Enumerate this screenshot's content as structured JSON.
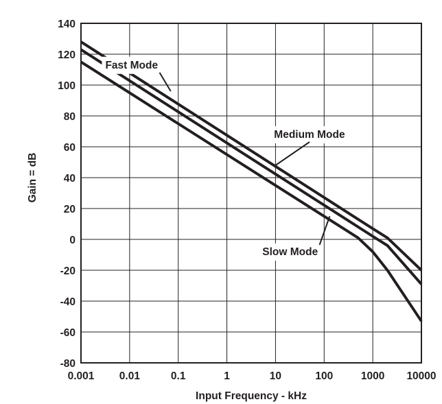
{
  "chart_data": {
    "type": "line",
    "xlabel": "Input Frequency - kHz",
    "ylabel": "Gain = dB",
    "x_scale": "log",
    "xlim": [
      0.001,
      10000
    ],
    "ylim": [
      -80,
      140
    ],
    "x_ticks": [
      0.001,
      0.01,
      0.1,
      1,
      10,
      100,
      1000,
      10000
    ],
    "x_tick_labels": [
      "0.001",
      "0.01",
      "0.1",
      "1",
      "10",
      "100",
      "1000",
      "10000"
    ],
    "y_ticks": [
      -80,
      -60,
      -40,
      -20,
      0,
      20,
      40,
      60,
      80,
      100,
      120,
      140
    ],
    "y_tick_labels": [
      "-80",
      "-60",
      "-40",
      "-20",
      "0",
      "20",
      "40",
      "60",
      "80",
      "100",
      "120",
      "140"
    ],
    "grid": true,
    "series": [
      {
        "name": "Fast Mode",
        "color": "#231f20",
        "x": [
          0.001,
          1000,
          2000,
          10000
        ],
        "y": [
          128,
          7,
          1,
          -20
        ]
      },
      {
        "name": "Medium Mode",
        "color": "#231f20",
        "x": [
          0.001,
          1000,
          2000,
          10000
        ],
        "y": [
          123,
          2,
          -4,
          -29
        ]
      },
      {
        "name": "Slow Mode",
        "color": "#231f20",
        "x": [
          0.001,
          500,
          1000,
          2000,
          10000
        ],
        "y": [
          115,
          1,
          -8,
          -20,
          -53
        ]
      }
    ],
    "annotations": [
      {
        "text": "Fast Mode",
        "x": 0.011,
        "y": 113,
        "arrow_to": [
          0.07,
          96
        ]
      },
      {
        "text": "Medium Mode",
        "x": 50,
        "y": 68,
        "arrow_to": [
          10,
          48
        ]
      },
      {
        "text": "Slow Mode",
        "x": 20,
        "y": -8,
        "arrow_to": [
          130,
          15
        ]
      }
    ]
  }
}
